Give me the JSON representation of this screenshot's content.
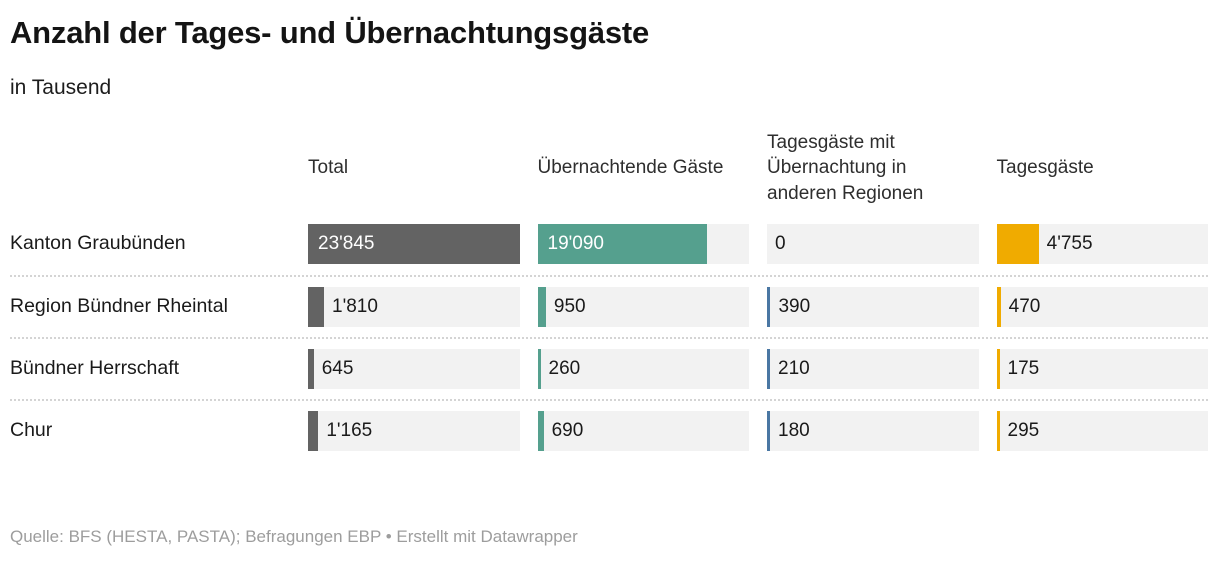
{
  "header": {
    "title": "Anzahl der Tages- und Übernachtungsgäste",
    "subtitle": "in Tausend"
  },
  "table": {
    "columns": [
      {
        "label": "Total",
        "color": "#636363"
      },
      {
        "label": "Übernachtende Gäste",
        "color": "#55a08e"
      },
      {
        "label": "Tagesgäste mit Übernachtung in anderen Regionen",
        "color": "#4a77a3"
      },
      {
        "label": "Tagesgäste",
        "color": "#f0ab00"
      }
    ],
    "rows": [
      {
        "label": "Kanton Graubünden",
        "cells": [
          {
            "value": 23845,
            "text": "23'845"
          },
          {
            "value": 19090,
            "text": "19'090"
          },
          {
            "value": 0,
            "text": "0"
          },
          {
            "value": 4755,
            "text": "4'755"
          }
        ]
      },
      {
        "label": "Region Bündner Rheintal",
        "cells": [
          {
            "value": 1810,
            "text": "1'810"
          },
          {
            "value": 950,
            "text": "950"
          },
          {
            "value": 390,
            "text": "390"
          },
          {
            "value": 470,
            "text": "470"
          }
        ]
      },
      {
        "label": "Bündner Herrschaft",
        "cells": [
          {
            "value": 645,
            "text": "645"
          },
          {
            "value": 260,
            "text": "260"
          },
          {
            "value": 210,
            "text": "210"
          },
          {
            "value": 175,
            "text": "175"
          }
        ]
      },
      {
        "label": "Chur",
        "cells": [
          {
            "value": 1165,
            "text": "1'165"
          },
          {
            "value": 690,
            "text": "690"
          },
          {
            "value": 180,
            "text": "180"
          },
          {
            "value": 295,
            "text": "295"
          }
        ]
      }
    ]
  },
  "footer": {
    "text": "Quelle: BFS (HESTA, PASTA); Befragungen EBP • Erstellt mit Datawrapper"
  },
  "colors": {
    "bar_total": "#636363",
    "bar_overnight": "#55a08e",
    "bar_day_overnight_other": "#4a77a3",
    "bar_day": "#f0ab00",
    "track": "#f2f2f2",
    "separator": "#d4d4d4",
    "footer_text": "#9d9d9d"
  },
  "chart_data": {
    "type": "bar",
    "title": "Anzahl der Tages- und Übernachtungsgäste",
    "subtitle": "in Tausend",
    "unit": "Tausend",
    "categories": [
      "Kanton Graubünden",
      "Region Bündner Rheintal",
      "Bündner Herrschaft",
      "Chur"
    ],
    "series": [
      {
        "name": "Total",
        "color": "#636363",
        "values": [
          23845,
          1810,
          645,
          1165
        ]
      },
      {
        "name": "Übernachtende Gäste",
        "color": "#55a08e",
        "values": [
          19090,
          950,
          260,
          690
        ]
      },
      {
        "name": "Tagesgäste mit Übernachtung in anderen Regionen",
        "color": "#4a77a3",
        "values": [
          0,
          390,
          210,
          180
        ]
      },
      {
        "name": "Tagesgäste",
        "color": "#f0ab00",
        "values": [
          4755,
          470,
          175,
          295
        ]
      }
    ],
    "max": 23845,
    "value_format": "swiss-apostrophe-thousands",
    "legend_position": "column-headers",
    "grid": false,
    "layout": "bar-table",
    "source_line": "Quelle: BFS (HESTA, PASTA); Befragungen EBP • Erstellt mit Datawrapper"
  }
}
